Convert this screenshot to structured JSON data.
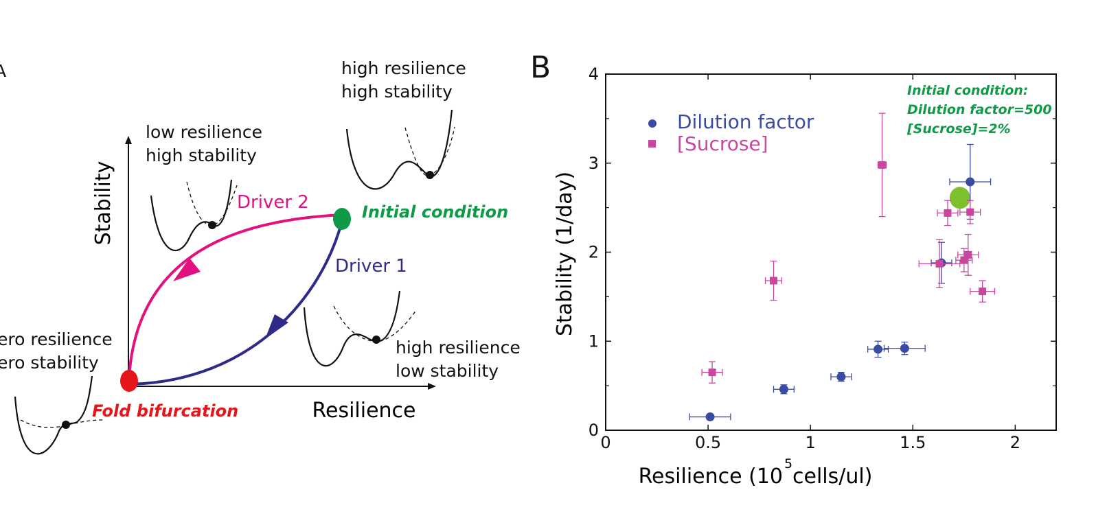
{
  "panel_a": {
    "letter": "A",
    "y_axis_label": "Stability",
    "x_axis_label": "Resilience",
    "landscapes": {
      "top_left": [
        "low resilience",
        "high stability"
      ],
      "top_right": [
        "high resilience",
        "high stability"
      ],
      "bottom_right": [
        "high resilience",
        "low stability"
      ],
      "bottom_left": [
        "ero resilience",
        "ero stability"
      ]
    },
    "driver1_label": "Driver 1",
    "driver2_label": "Driver 2",
    "initial_condition_label": "Initial condition",
    "fold_bifurcation_label": "Fold bifurcation",
    "colors": {
      "driver1": "#2e2a87",
      "driver2": "#e3107f",
      "initial": "#0f9a48",
      "fold": "#e5151c"
    }
  },
  "panel_b": {
    "letter": "B",
    "legend": {
      "dilution": "Dilution factor",
      "sucrose": "[Sucrose]"
    },
    "annotation": [
      "Initial condition:",
      "Dilution factor=500",
      "[Sucrose]=2%"
    ],
    "colors": {
      "dilution": "#3a4ba3",
      "sucrose": "#c9469f",
      "initial": "#7ec12f",
      "annotation": "#0f9a48"
    },
    "chart_data": {
      "type": "scatter",
      "xlabel_main": "Resilience (10",
      "xlabel_sup": "5",
      "xlabel_rest": " cells/ul)",
      "ylabel": "Stability (1/day)",
      "xlim": [
        0,
        2.2
      ],
      "ylim": [
        0,
        4
      ],
      "x_ticks": [
        0,
        0.5,
        1,
        1.5,
        2
      ],
      "x_tick_labels": [
        "0",
        "0.5",
        "1",
        "1.5",
        "2"
      ],
      "y_ticks": [
        0,
        1,
        2,
        3,
        4
      ],
      "y_tick_labels": [
        "0",
        "1",
        "2",
        "3",
        "4"
      ],
      "series": [
        {
          "name": "Dilution factor",
          "marker": "circle",
          "points": [
            {
              "x": 0.51,
              "y": 0.15,
              "xerr": 0.1,
              "yerr": 0.02
            },
            {
              "x": 0.87,
              "y": 0.46,
              "xerr": 0.05,
              "yerr": 0.05
            },
            {
              "x": 1.15,
              "y": 0.6,
              "xerr": 0.05,
              "yerr": 0.05
            },
            {
              "x": 1.33,
              "y": 0.91,
              "xerr": 0.05,
              "yerr": 0.09
            },
            {
              "x": 1.46,
              "y": 0.92,
              "xerr": 0.1,
              "yerr": 0.07
            },
            {
              "x": 1.64,
              "y": 1.88,
              "xerr": 0.05,
              "yerr": 0.23
            },
            {
              "x": 1.78,
              "y": 2.79,
              "xerr": 0.1,
              "yerr": 0.42
            }
          ]
        },
        {
          "name": "[Sucrose]",
          "marker": "square",
          "points": [
            {
              "x": 0.52,
              "y": 0.65,
              "xerr": 0.05,
              "yerr": 0.12
            },
            {
              "x": 0.82,
              "y": 1.68,
              "xerr": 0.04,
              "yerr": 0.22
            },
            {
              "x": 1.35,
              "y": 2.98,
              "xerr": 0.02,
              "yerr": 0.58
            },
            {
              "x": 1.63,
              "y": 1.87,
              "xerr": 0.1,
              "yerr": 0.27
            },
            {
              "x": 1.67,
              "y": 2.44,
              "xerr": 0.05,
              "yerr": 0.14
            },
            {
              "x": 1.75,
              "y": 1.91,
              "xerr": 0.04,
              "yerr": 0.13
            },
            {
              "x": 1.77,
              "y": 1.97,
              "xerr": 0.05,
              "yerr": 0.23
            },
            {
              "x": 1.78,
              "y": 2.45,
              "xerr": 0.05,
              "yerr": 0.13
            },
            {
              "x": 1.84,
              "y": 1.56,
              "xerr": 0.06,
              "yerr": 0.12
            }
          ]
        }
      ],
      "initial_condition_point": {
        "x": 1.73,
        "y": 2.61
      }
    }
  }
}
